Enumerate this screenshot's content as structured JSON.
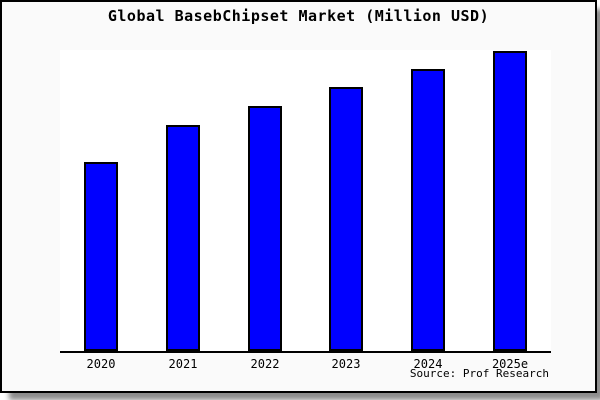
{
  "window": {
    "outer_background": "#ffffff",
    "frame_background": "#fafafa",
    "frame_border_color": "#000000",
    "shadow_color": "#888888"
  },
  "chart_data": {
    "type": "bar",
    "title": "Global BasebChipset Market (Million USD)",
    "categories": [
      "2020",
      "2021",
      "2022",
      "2023",
      "2024",
      "2025e"
    ],
    "values": [
      63,
      75.3,
      81.7,
      88,
      94,
      100
    ],
    "value_note": "no y-axis ticks or labels shown; values are relative heights normalized to 2025e = 100",
    "xlabel": "",
    "ylabel": "",
    "ylim": [
      0,
      100.3
    ],
    "grid": false,
    "legend": false,
    "y_axis_visible": false,
    "bar_color": "#0000ff",
    "bar_border_color": "#000000",
    "axis_line_color": "#000000",
    "plot_background": "#ffffff",
    "source_note": "Source: Prof Research"
  }
}
